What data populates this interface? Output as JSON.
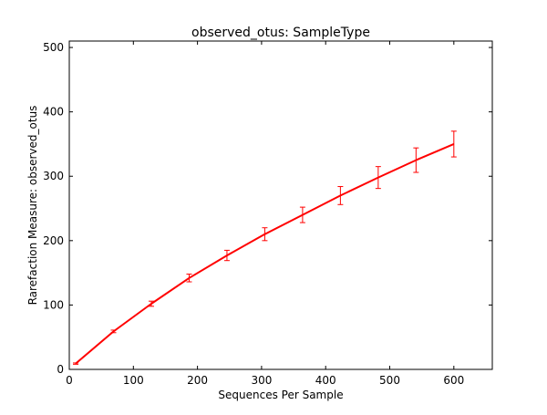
{
  "chart_data": {
    "type": "line",
    "title": "observed_otus: SampleType",
    "xlabel": "Sequences Per Sample",
    "ylabel": "Rarefaction Measure: observed_otus",
    "xlim": [
      0,
      660
    ],
    "ylim": [
      0,
      510
    ],
    "xticks": [
      0,
      100,
      200,
      300,
      400,
      500,
      600
    ],
    "yticks": [
      0,
      100,
      200,
      300,
      400,
      500
    ],
    "grid": false,
    "legend": "none",
    "series": [
      {
        "color": "#ff0000",
        "x": [
          10,
          69,
          128,
          187,
          246,
          305,
          364,
          423,
          482,
          541,
          600
        ],
        "y": [
          9,
          59,
          102,
          142,
          177,
          210,
          240,
          270,
          298,
          325,
          350
        ],
        "error": [
          1,
          2,
          4,
          6,
          8,
          10,
          12,
          14,
          17,
          19,
          20
        ]
      }
    ]
  }
}
